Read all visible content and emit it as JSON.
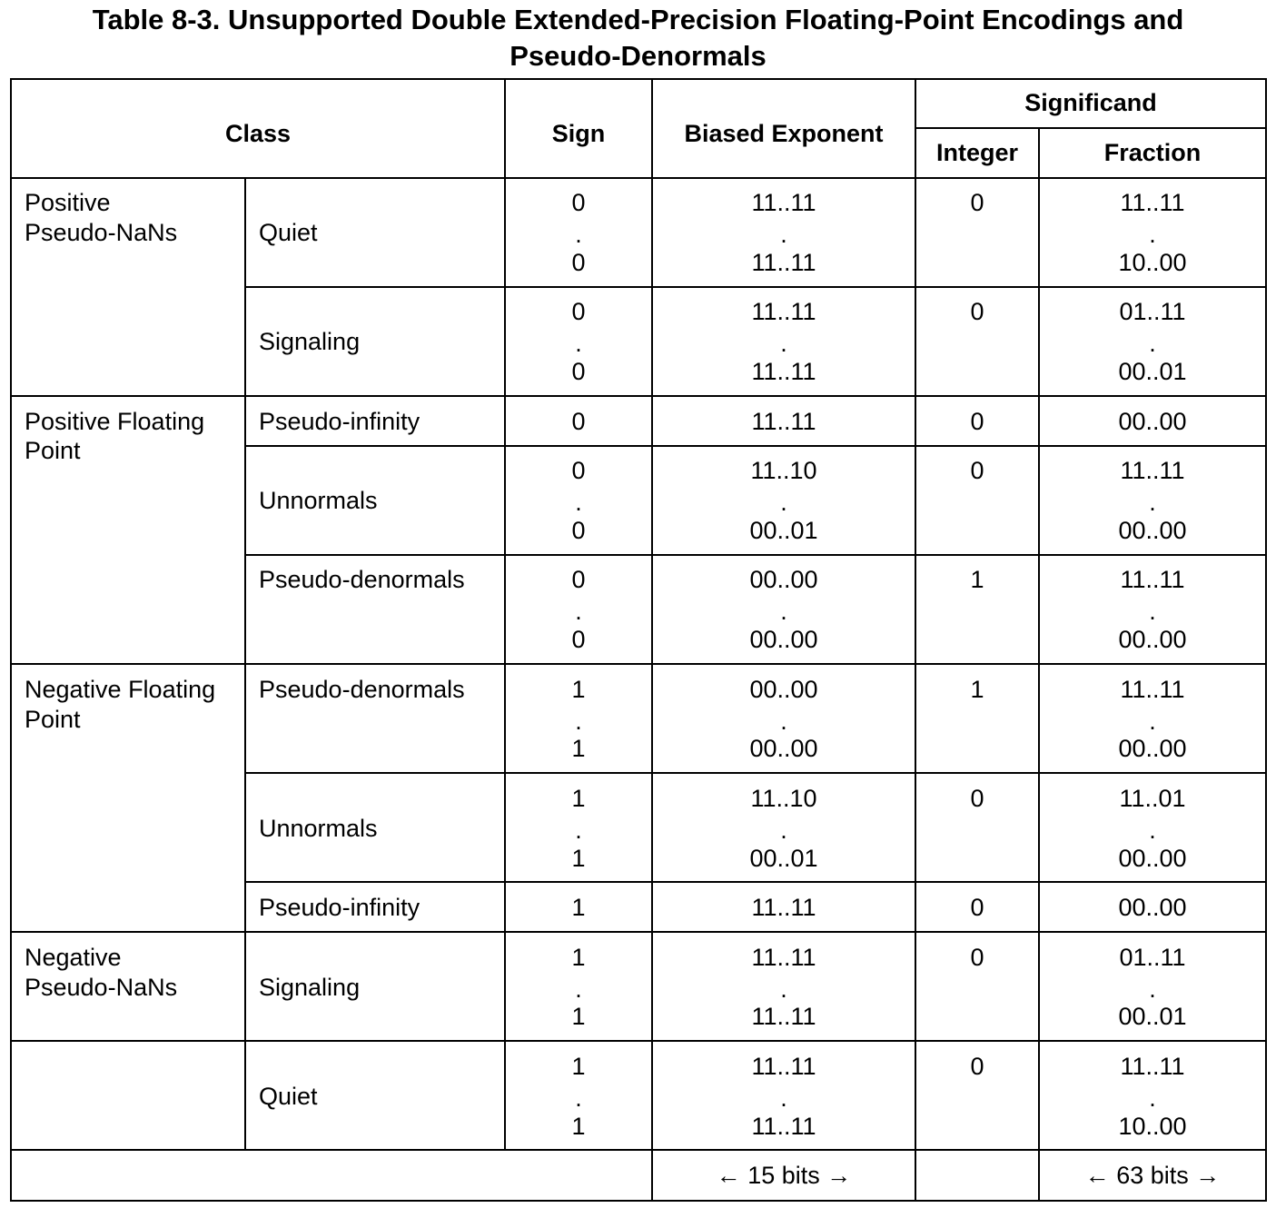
{
  "caption": {
    "line1": "Table 8-3.  Unsupported Double Extended-Precision Floating-Point Encodings and",
    "line2": "Pseudo-Denormals"
  },
  "header": {
    "class": "Class",
    "sign": "Sign",
    "biased_exponent": "Biased Exponent",
    "significand": "Significand",
    "integer": "Integer",
    "fraction": "Fraction"
  },
  "groups": [
    {
      "label_line1": "Positive",
      "label_line2": "Pseudo-NaNs"
    },
    {
      "label_line1": "Positive Floating",
      "label_line2": "Point"
    },
    {
      "label_line1": "Negative Floating",
      "label_line2": "Point"
    },
    {
      "label_line1": "Negative",
      "label_line2": "Pseudo-NaNs"
    }
  ],
  "rows": [
    {
      "subclass": "Quiet",
      "sign_top": "0",
      "sign_bottom": "0",
      "exp_top": "11..11",
      "exp_bottom": "11..11",
      "integer": "0",
      "frac_top": "11..11",
      "frac_bottom": "10..00"
    },
    {
      "subclass": "Signaling",
      "sign_top": "0",
      "sign_bottom": "0",
      "exp_top": "11..11",
      "exp_bottom": "11..11",
      "integer": "0",
      "frac_top": "01..11",
      "frac_bottom": "00..01"
    },
    {
      "subclass": "Pseudo-infinity",
      "sign_top": "0",
      "exp_top": "11..11",
      "integer": "0",
      "frac_top": "00..00"
    },
    {
      "subclass": "Unnormals",
      "sign_top": "0",
      "sign_bottom": "0",
      "exp_top": "11..10",
      "exp_bottom": "00..01",
      "integer": "0",
      "frac_top": "11..11",
      "frac_bottom": "00..00"
    },
    {
      "subclass": "Pseudo-denormals",
      "sign_top": "0",
      "sign_bottom": "0",
      "exp_top": "00..00",
      "exp_bottom": "00..00",
      "integer": "1",
      "frac_top": "11..11",
      "frac_bottom": "00..00"
    },
    {
      "subclass": "Pseudo-denormals",
      "sign_top": "1",
      "sign_bottom": "1",
      "exp_top": "00..00",
      "exp_bottom": "00..00",
      "integer": "1",
      "frac_top": "11..11",
      "frac_bottom": "00..00"
    },
    {
      "subclass": "Unnormals",
      "sign_top": "1",
      "sign_bottom": "1",
      "exp_top": "11..10",
      "exp_bottom": "00..01",
      "integer": "0",
      "frac_top": "11..01",
      "frac_bottom": "00..00"
    },
    {
      "subclass": "Pseudo-infinity",
      "sign_top": "1",
      "exp_top": "11..11",
      "integer": "0",
      "frac_top": "00..00"
    },
    {
      "subclass": "Signaling",
      "sign_top": "1",
      "sign_bottom": "1",
      "exp_top": "11..11",
      "exp_bottom": "11..11",
      "integer": "0",
      "frac_top": "01..11",
      "frac_bottom": "00..01"
    },
    {
      "subclass": "Quiet",
      "sign_top": "1",
      "sign_bottom": "1",
      "exp_top": "11..11",
      "exp_bottom": "11..11",
      "integer": "0",
      "frac_top": "11..11",
      "frac_bottom": "10..00"
    }
  ],
  "footer": {
    "exponent_width": "← 15 bits →",
    "fraction_width": "← 63 bits →"
  }
}
